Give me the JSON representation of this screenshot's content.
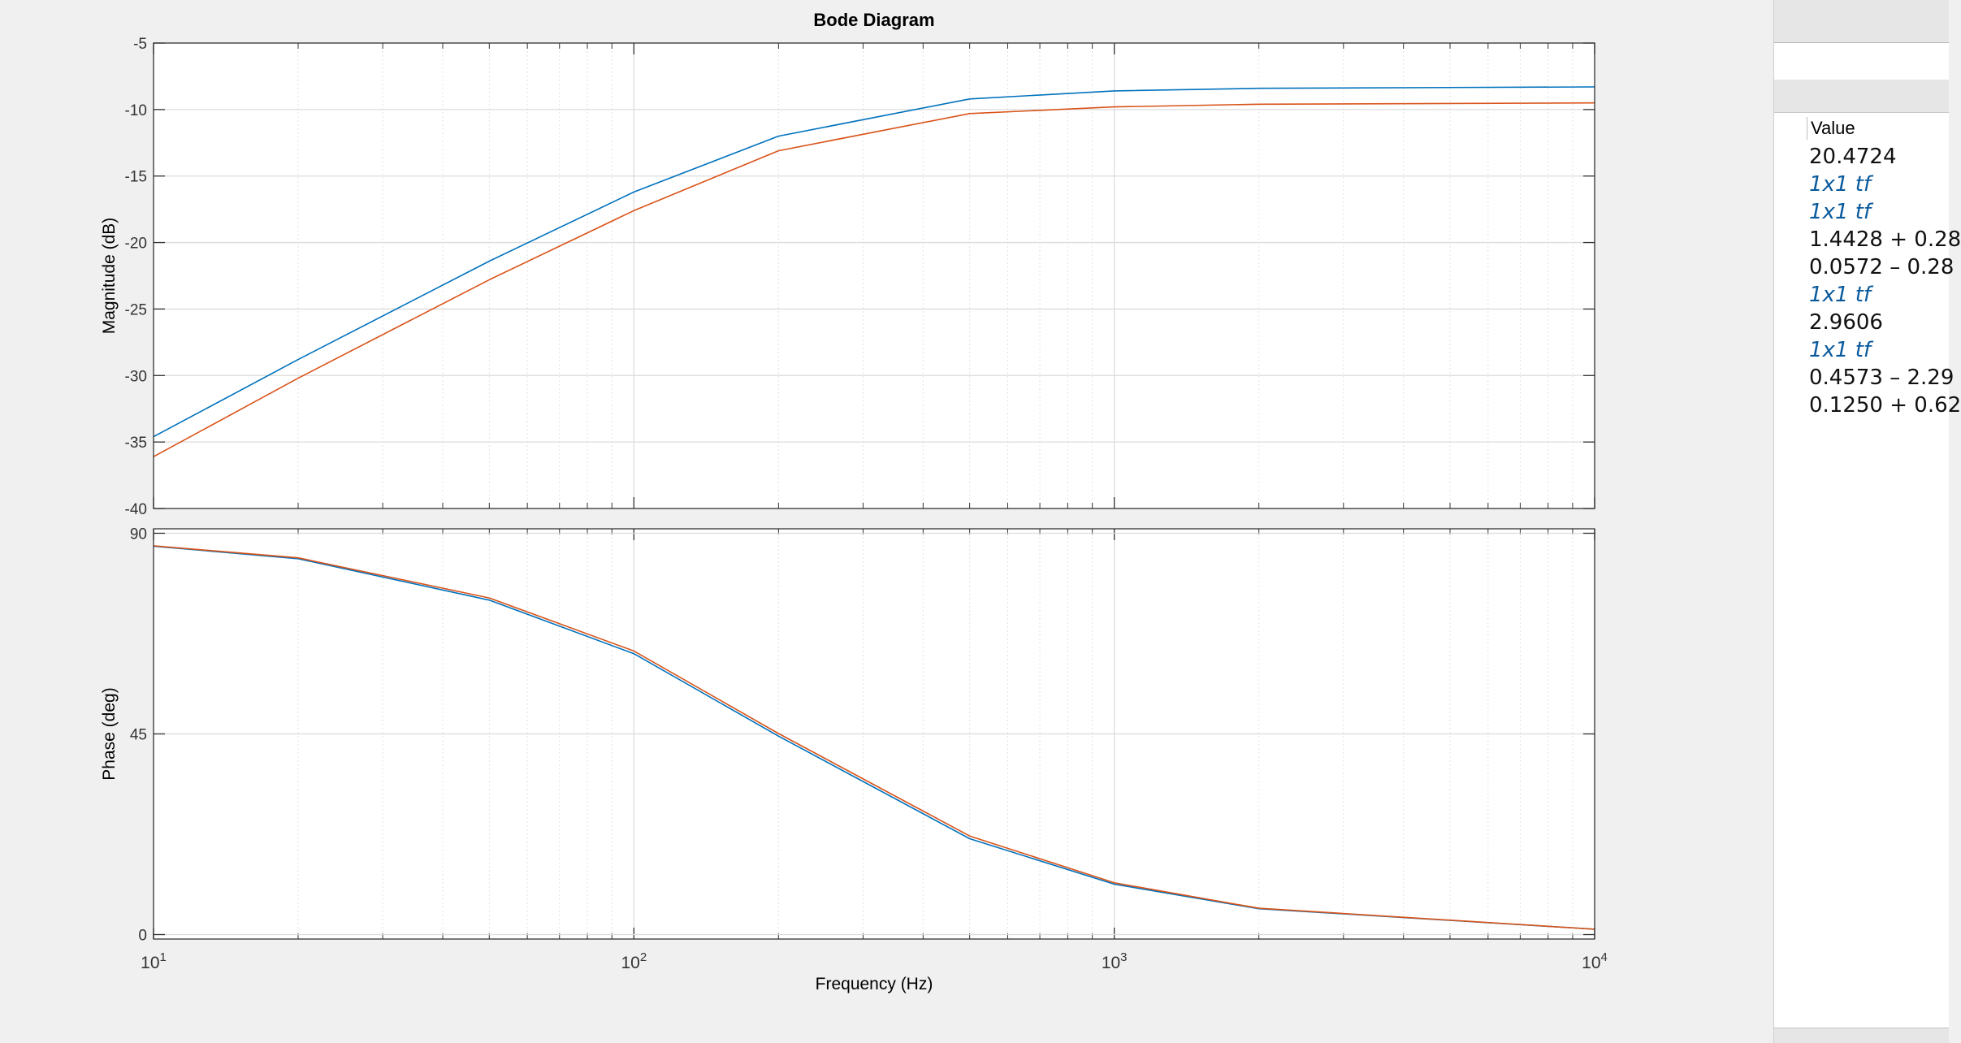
{
  "chart_data": {
    "type": "line",
    "title": "Bode Diagram",
    "xlabel": "Frequency  (Hz)",
    "xscale": "log",
    "xlim": [
      10,
      10000
    ],
    "x_ticks": [
      {
        "base": "10",
        "exp": "1",
        "value": 10
      },
      {
        "base": "10",
        "exp": "2",
        "value": 100
      },
      {
        "base": "10",
        "exp": "3",
        "value": 1000
      },
      {
        "base": "10",
        "exp": "4",
        "value": 10000
      }
    ],
    "grid": true,
    "subplots": [
      {
        "name": "magnitude",
        "ylabel": "Magnitude (dB)",
        "ylim": [
          -40,
          -5
        ],
        "yticks": [
          -5,
          -10,
          -15,
          -20,
          -25,
          -30,
          -35,
          -40
        ],
        "series": [
          {
            "color": "#0072bd",
            "x": [
              10,
              20,
              50,
              100,
              200,
              500,
              1000,
              2000,
              10000
            ],
            "y": [
              -34.6,
              -28.8,
              -21.4,
              -16.2,
              -12.0,
              -9.2,
              -8.6,
              -8.4,
              -8.3
            ]
          },
          {
            "color": "#d95319",
            "x": [
              10,
              20,
              50,
              100,
              200,
              500,
              1000,
              2000,
              10000
            ],
            "y": [
              -36.1,
              -30.2,
              -22.8,
              -17.6,
              -13.1,
              -10.3,
              -9.8,
              -9.6,
              -9.5
            ]
          }
        ]
      },
      {
        "name": "phase",
        "ylabel": "Phase (deg)",
        "ylim": [
          -1,
          91
        ],
        "yticks": [
          90,
          45,
          0
        ],
        "series": [
          {
            "color": "#0072bd",
            "x": [
              10,
              20,
              50,
              100,
              200,
              500,
              1000,
              2000,
              10000
            ],
            "y": [
              87.1,
              84.3,
              75.0,
              63.0,
              44.5,
              21.5,
              11.3,
              5.8,
              1.2
            ]
          },
          {
            "color": "#d95319",
            "x": [
              10,
              20,
              50,
              100,
              200,
              500,
              1000,
              2000,
              10000
            ],
            "y": [
              87.2,
              84.5,
              75.5,
              63.6,
              45.1,
              22.1,
              11.6,
              5.9,
              1.2
            ]
          }
        ]
      }
    ]
  },
  "workspace": {
    "value_header": "Value",
    "values": [
      {
        "text": "20.4724",
        "kind": "number"
      },
      {
        "text": "1x1 tf",
        "kind": "object"
      },
      {
        "text": "1x1 tf",
        "kind": "object"
      },
      {
        "text": "1.4428 + 0.28",
        "kind": "number"
      },
      {
        "text": "0.0572 – 0.28",
        "kind": "number"
      },
      {
        "text": "1x1 tf",
        "kind": "object"
      },
      {
        "text": "2.9606",
        "kind": "number"
      },
      {
        "text": "1x1 tf",
        "kind": "object"
      },
      {
        "text": "0.4573 – 2.29",
        "kind": "number"
      },
      {
        "text": "0.1250 + 0.62",
        "kind": "number"
      }
    ]
  }
}
